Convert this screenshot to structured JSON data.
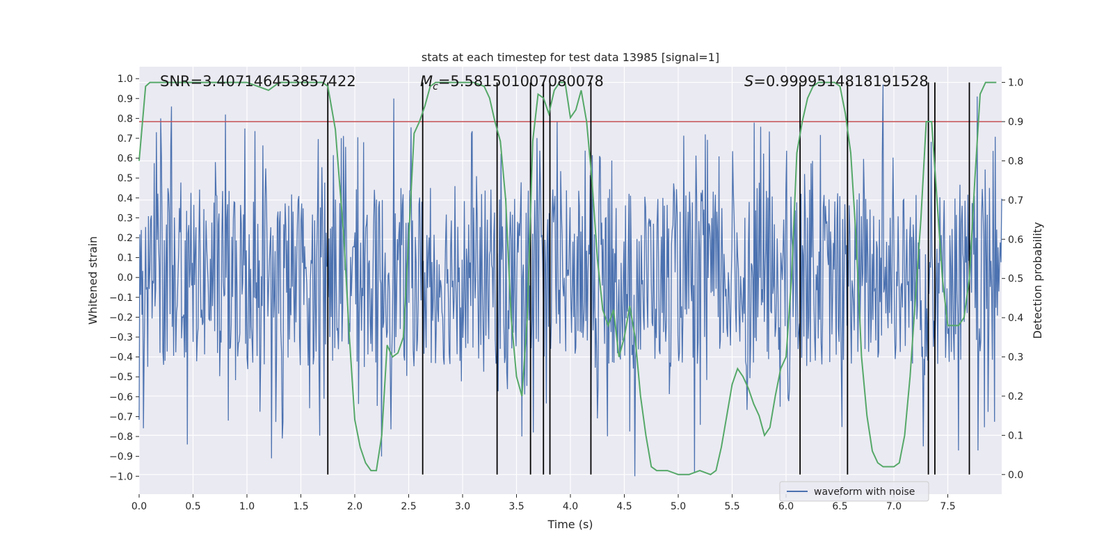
{
  "chart_data": {
    "type": "line",
    "title": "stats at each timestep for test data 13985 [signal=1]",
    "xlabel": "Time (s)",
    "ylabel_left": "Whitened strain",
    "ylabel_right": "Detection probability",
    "xlim": [
      0.0,
      8.0
    ],
    "ylim_left": [
      -1.09,
      1.06
    ],
    "ylim_right": [
      -0.05,
      1.04
    ],
    "x_ticks": [
      0.0,
      0.5,
      1.0,
      1.5,
      2.0,
      2.5,
      3.0,
      3.5,
      4.0,
      4.5,
      5.0,
      5.5,
      6.0,
      6.5,
      7.0,
      7.5
    ],
    "x_tick_labels": [
      "0.0",
      "0.5",
      "1.0",
      "1.5",
      "2.0",
      "2.5",
      "3.0",
      "3.5",
      "4.0",
      "4.5",
      "5.0",
      "5.5",
      "6.0",
      "6.5",
      "7.0",
      "7.5"
    ],
    "y_left_ticks": [
      1.0,
      0.9,
      0.8,
      0.7,
      0.6,
      0.5,
      0.4,
      0.3,
      0.2,
      0.1,
      0.0,
      -0.1,
      -0.2,
      -0.3,
      -0.4,
      -0.5,
      -0.6,
      -0.7,
      -0.8,
      -0.9,
      -1.0
    ],
    "y_left_tick_labels": [
      "1.0",
      "0.9",
      "0.8",
      "0.7",
      "0.6",
      "0.5",
      "0.4",
      "0.3",
      "0.2",
      "0.1",
      "0.0",
      "−0.1",
      "−0.2",
      "−0.3",
      "−0.4",
      "−0.5",
      "−0.6",
      "−0.7",
      "−0.8",
      "−0.9",
      "−1.0"
    ],
    "y_right_ticks": [
      1.0,
      0.9,
      0.8,
      0.7,
      0.6,
      0.5,
      0.4,
      0.3,
      0.2,
      0.1,
      0.0
    ],
    "y_right_tick_labels": [
      "1.0",
      "0.9",
      "0.8",
      "0.7",
      "0.6",
      "0.5",
      "0.4",
      "0.3",
      "0.2",
      "0.1",
      "0.0"
    ],
    "threshold": {
      "value": 0.9,
      "axis": "right",
      "color": "#c44e52"
    },
    "annotations": {
      "snr": "SNR=3.407146453857422",
      "mc_symbol": "M",
      "mc_sub": "c",
      "mc_value": "=5.581501007080078",
      "s_symbol": "S",
      "s_value": "=0.9999514818191528"
    },
    "legend": {
      "label": "waveform with noise",
      "location": "lower-right"
    },
    "series": [
      {
        "name": "waveform with noise",
        "axis": "left",
        "color": "#4c72b0",
        "style": "dense noise trace",
        "n_samples": 1200,
        "seed": 13985,
        "typical_range": [
          -0.45,
          0.45
        ],
        "max_peak": 0.97,
        "min_peak": -1.0,
        "peaks": [
          {
            "x": 0.2,
            "y": 0.8
          },
          {
            "x": 0.3,
            "y": 0.86
          },
          {
            "x": 0.45,
            "y": -0.84
          },
          {
            "x": 0.8,
            "y": 0.82
          },
          {
            "x": 1.23,
            "y": -0.91
          },
          {
            "x": 1.33,
            "y": -0.81
          },
          {
            "x": 2.25,
            "y": -0.9
          },
          {
            "x": 2.36,
            "y": 0.9
          },
          {
            "x": 3.55,
            "y": -0.8
          },
          {
            "x": 4.6,
            "y": -1.0
          },
          {
            "x": 5.15,
            "y": -0.98
          },
          {
            "x": 6.9,
            "y": 0.97
          },
          {
            "x": 7.27,
            "y": -0.85
          },
          {
            "x": 7.6,
            "y": -0.87
          },
          {
            "x": 7.77,
            "y": 0.91
          },
          {
            "x": 7.78,
            "y": -0.87
          }
        ]
      },
      {
        "name": "detection probability",
        "axis": "right",
        "color": "#55a868",
        "x": [
          0.0,
          0.06,
          0.1,
          0.15,
          0.2,
          0.3,
          0.5,
          0.7,
          0.9,
          1.0,
          1.1,
          1.2,
          1.3,
          1.5,
          1.7,
          1.75,
          1.82,
          1.9,
          1.95,
          2.0,
          2.05,
          2.1,
          2.15,
          2.2,
          2.25,
          2.3,
          2.35,
          2.4,
          2.45,
          2.5,
          2.55,
          2.6,
          2.65,
          2.7,
          2.75,
          2.8,
          2.9,
          3.0,
          3.1,
          3.2,
          3.25,
          3.3,
          3.35,
          3.4,
          3.45,
          3.5,
          3.55,
          3.6,
          3.65,
          3.7,
          3.75,
          3.8,
          3.85,
          3.9,
          3.95,
          4.0,
          4.05,
          4.1,
          4.15,
          4.2,
          4.25,
          4.3,
          4.35,
          4.4,
          4.45,
          4.5,
          4.55,
          4.6,
          4.65,
          4.7,
          4.75,
          4.8,
          4.9,
          5.0,
          5.1,
          5.2,
          5.3,
          5.35,
          5.4,
          5.45,
          5.5,
          5.55,
          5.6,
          5.65,
          5.7,
          5.75,
          5.8,
          5.85,
          5.9,
          5.95,
          6.0,
          6.05,
          6.1,
          6.15,
          6.2,
          6.25,
          6.3,
          6.35,
          6.4,
          6.45,
          6.5,
          6.55,
          6.6,
          6.65,
          6.7,
          6.75,
          6.8,
          6.85,
          6.9,
          6.95,
          7.0,
          7.05,
          7.1,
          7.15,
          7.2,
          7.25,
          7.3,
          7.35,
          7.4,
          7.45,
          7.5,
          7.55,
          7.6,
          7.65,
          7.7,
          7.75,
          7.8,
          7.85,
          7.9,
          7.95
        ],
        "y": [
          0.8,
          0.99,
          1.0,
          1.0,
          1.0,
          1.0,
          1.0,
          1.0,
          1.0,
          1.0,
          0.99,
          0.98,
          1.0,
          1.0,
          1.0,
          0.99,
          0.88,
          0.6,
          0.35,
          0.14,
          0.07,
          0.03,
          0.01,
          0.01,
          0.1,
          0.33,
          0.3,
          0.31,
          0.35,
          0.6,
          0.87,
          0.9,
          0.94,
          0.99,
          1.0,
          1.0,
          1.0,
          1.0,
          1.0,
          0.99,
          0.96,
          0.9,
          0.85,
          0.7,
          0.4,
          0.25,
          0.2,
          0.4,
          0.85,
          0.97,
          0.96,
          0.92,
          0.98,
          1.0,
          1.0,
          0.91,
          0.93,
          0.98,
          0.9,
          0.75,
          0.55,
          0.42,
          0.38,
          0.42,
          0.3,
          0.35,
          0.43,
          0.35,
          0.2,
          0.1,
          0.02,
          0.01,
          0.01,
          0.0,
          0.0,
          0.01,
          0.0,
          0.01,
          0.07,
          0.15,
          0.23,
          0.27,
          0.25,
          0.22,
          0.18,
          0.15,
          0.1,
          0.12,
          0.2,
          0.27,
          0.3,
          0.5,
          0.82,
          0.9,
          0.96,
          0.99,
          1.0,
          1.0,
          1.0,
          1.0,
          0.99,
          0.92,
          0.82,
          0.6,
          0.3,
          0.15,
          0.06,
          0.03,
          0.02,
          0.02,
          0.02,
          0.03,
          0.1,
          0.25,
          0.45,
          0.65,
          0.9,
          0.9,
          0.7,
          0.5,
          0.38,
          0.38,
          0.38,
          0.4,
          0.5,
          0.75,
          0.97,
          1.0,
          1.0,
          1.0
        ]
      }
    ],
    "event_lines": [
      1.75,
      2.63,
      3.32,
      3.63,
      3.75,
      3.81,
      4.19,
      6.13,
      6.57,
      7.32,
      7.38,
      7.7
    ]
  }
}
